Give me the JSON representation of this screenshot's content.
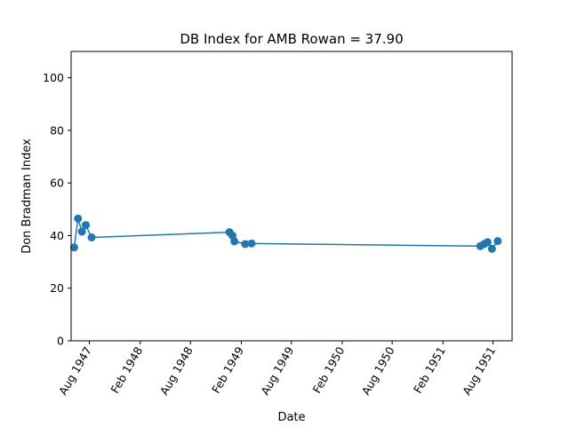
{
  "chart_data": {
    "type": "line",
    "title": "DB Index for AMB Rowan = 37.90",
    "xlabel": "Date",
    "ylabel": "Don Bradman Index",
    "ylim": [
      0,
      110
    ],
    "xlim": [
      "1947-05-27",
      "1951-10-09"
    ],
    "y_ticks": [
      0,
      20,
      40,
      60,
      80,
      100
    ],
    "x_ticks": [
      {
        "date": "1947-08-01",
        "label": "Aug 1947"
      },
      {
        "date": "1948-02-01",
        "label": "Feb 1948"
      },
      {
        "date": "1948-08-01",
        "label": "Aug 1948"
      },
      {
        "date": "1949-02-01",
        "label": "Feb 1949"
      },
      {
        "date": "1949-08-01",
        "label": "Aug 1949"
      },
      {
        "date": "1950-02-01",
        "label": "Feb 1950"
      },
      {
        "date": "1950-08-01",
        "label": "Aug 1950"
      },
      {
        "date": "1951-02-01",
        "label": "Feb 1951"
      },
      {
        "date": "1951-08-01",
        "label": "Aug 1951"
      }
    ],
    "grid": false,
    "series": [
      {
        "color": "#1f77b4",
        "marker": "circle",
        "points": [
          {
            "x": "1947-06-07",
            "y": 35.5
          },
          {
            "x": "1947-06-21",
            "y": 46.5
          },
          {
            "x": "1947-07-05",
            "y": 41.5
          },
          {
            "x": "1947-07-19",
            "y": 44.0
          },
          {
            "x": "1947-08-09",
            "y": 39.3
          },
          {
            "x": "1948-12-20",
            "y": 41.3
          },
          {
            "x": "1948-12-31",
            "y": 40.0
          },
          {
            "x": "1949-01-07",
            "y": 37.8
          },
          {
            "x": "1949-02-15",
            "y": 36.8
          },
          {
            "x": "1949-03-10",
            "y": 37.0
          },
          {
            "x": "1951-06-16",
            "y": 36.0
          },
          {
            "x": "1951-06-30",
            "y": 36.8
          },
          {
            "x": "1951-07-12",
            "y": 37.5
          },
          {
            "x": "1951-07-28",
            "y": 35.0
          },
          {
            "x": "1951-08-18",
            "y": 37.9
          }
        ]
      }
    ]
  }
}
